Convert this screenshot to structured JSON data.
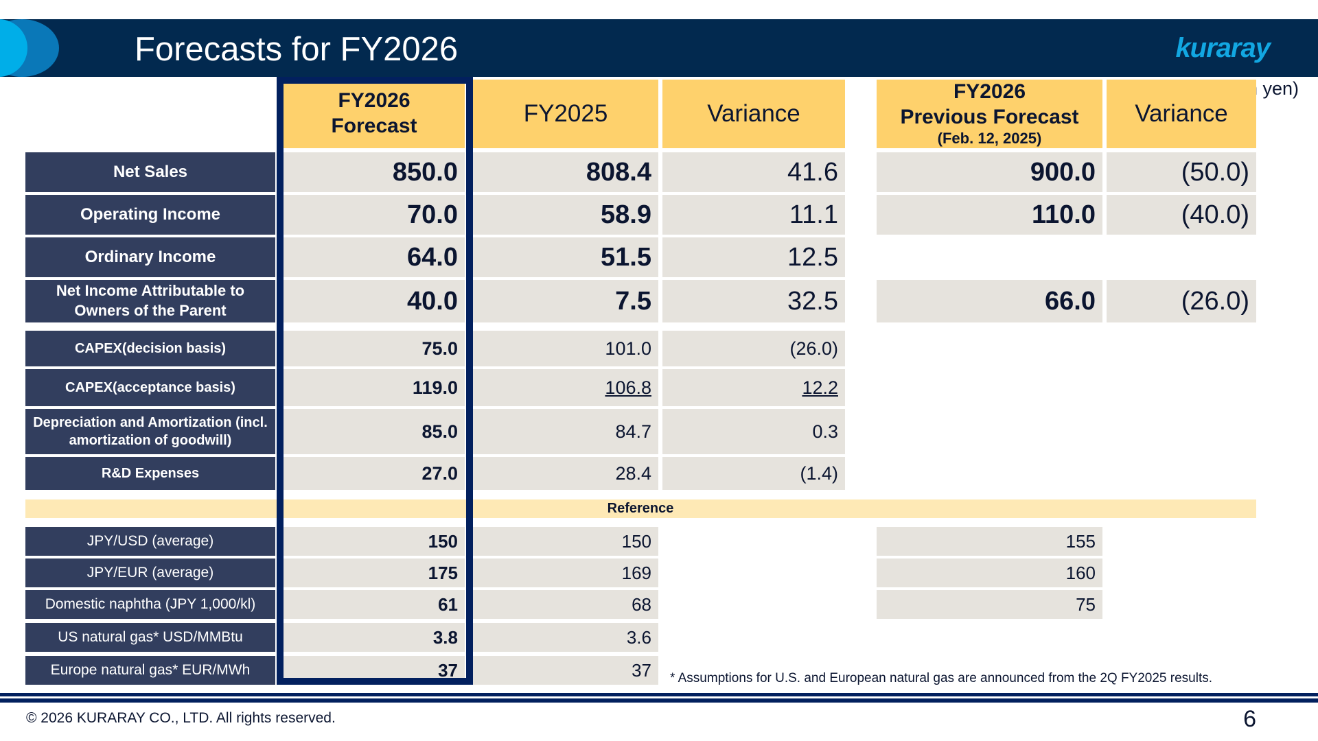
{
  "slide": {
    "title": "Forecasts for FY2026",
    "logo_text": "kuraray",
    "unit_note": "(Billion yen)",
    "page_number": "6",
    "copyright": "© 2026 KURARAY CO., LTD. All rights reserved.",
    "footnote": "*  Assumptions for U.S. and European natural gas are announced from the 2Q FY2025 results."
  },
  "colors": {
    "header_bg": "#02294f",
    "accent_header": "#fed16c",
    "label_bg": "#323e5e",
    "cell_bg": "#e6e3dd",
    "reference_band": "#fee9b5",
    "forecast_frame": "#02205e",
    "logo": "#12a7e2"
  },
  "table": {
    "headers": {
      "forecast": [
        "FY2026",
        "Forecast"
      ],
      "fy2025": "FY2025",
      "variance": "Variance",
      "previous": [
        "FY2026",
        "Previous Forecast",
        "(Feb. 12, 2025)"
      ],
      "prev_variance": "Variance"
    },
    "rows": [
      {
        "label": "Net Sales",
        "forecast": "850.0",
        "fy2025": "808.4",
        "variance": "41.6",
        "previous": "900.0",
        "prev_variance": "(50.0)"
      },
      {
        "label": "Operating Income",
        "forecast": "70.0",
        "fy2025": "58.9",
        "variance": "11.1",
        "previous": "110.0",
        "prev_variance": "(40.0)"
      },
      {
        "label": "Ordinary Income",
        "forecast": "64.0",
        "fy2025": "51.5",
        "variance": "12.5"
      },
      {
        "label": "Net Income Attributable to Owners of the Parent",
        "forecast": "40.0",
        "fy2025": "7.5",
        "variance": "32.5",
        "previous": "66.0",
        "prev_variance": "(26.0)"
      },
      {
        "label": "CAPEX(decision basis)",
        "forecast": "75.0",
        "fy2025": "101.0",
        "variance": "(26.0)"
      },
      {
        "label": "CAPEX(acceptance basis)",
        "forecast": "119.0",
        "fy2025": "106.8",
        "variance": "12.2"
      },
      {
        "label": "Depreciation and Amortization (incl. amortization of goodwill)",
        "forecast": "85.0",
        "fy2025": "84.7",
        "variance": "0.3"
      },
      {
        "label": "R&D Expenses",
        "forecast": "27.0",
        "fy2025": "28.4",
        "variance": "(1.4)"
      }
    ],
    "reference_label": "Reference",
    "reference_rows": [
      {
        "label": "JPY/USD (average)",
        "forecast": "150",
        "fy2025": "150",
        "previous": "155"
      },
      {
        "label": "JPY/EUR (average)",
        "forecast": "175",
        "fy2025": "169",
        "previous": "160"
      },
      {
        "label": "Domestic naphtha (JPY 1,000/kl)",
        "forecast": "61",
        "fy2025": "68",
        "previous": "75"
      },
      {
        "label": "US natural gas* USD/MMBtu",
        "forecast": "3.8",
        "fy2025": "3.6"
      },
      {
        "label": "Europe natural gas* EUR/MWh",
        "forecast": "37",
        "fy2025": "37"
      }
    ]
  }
}
